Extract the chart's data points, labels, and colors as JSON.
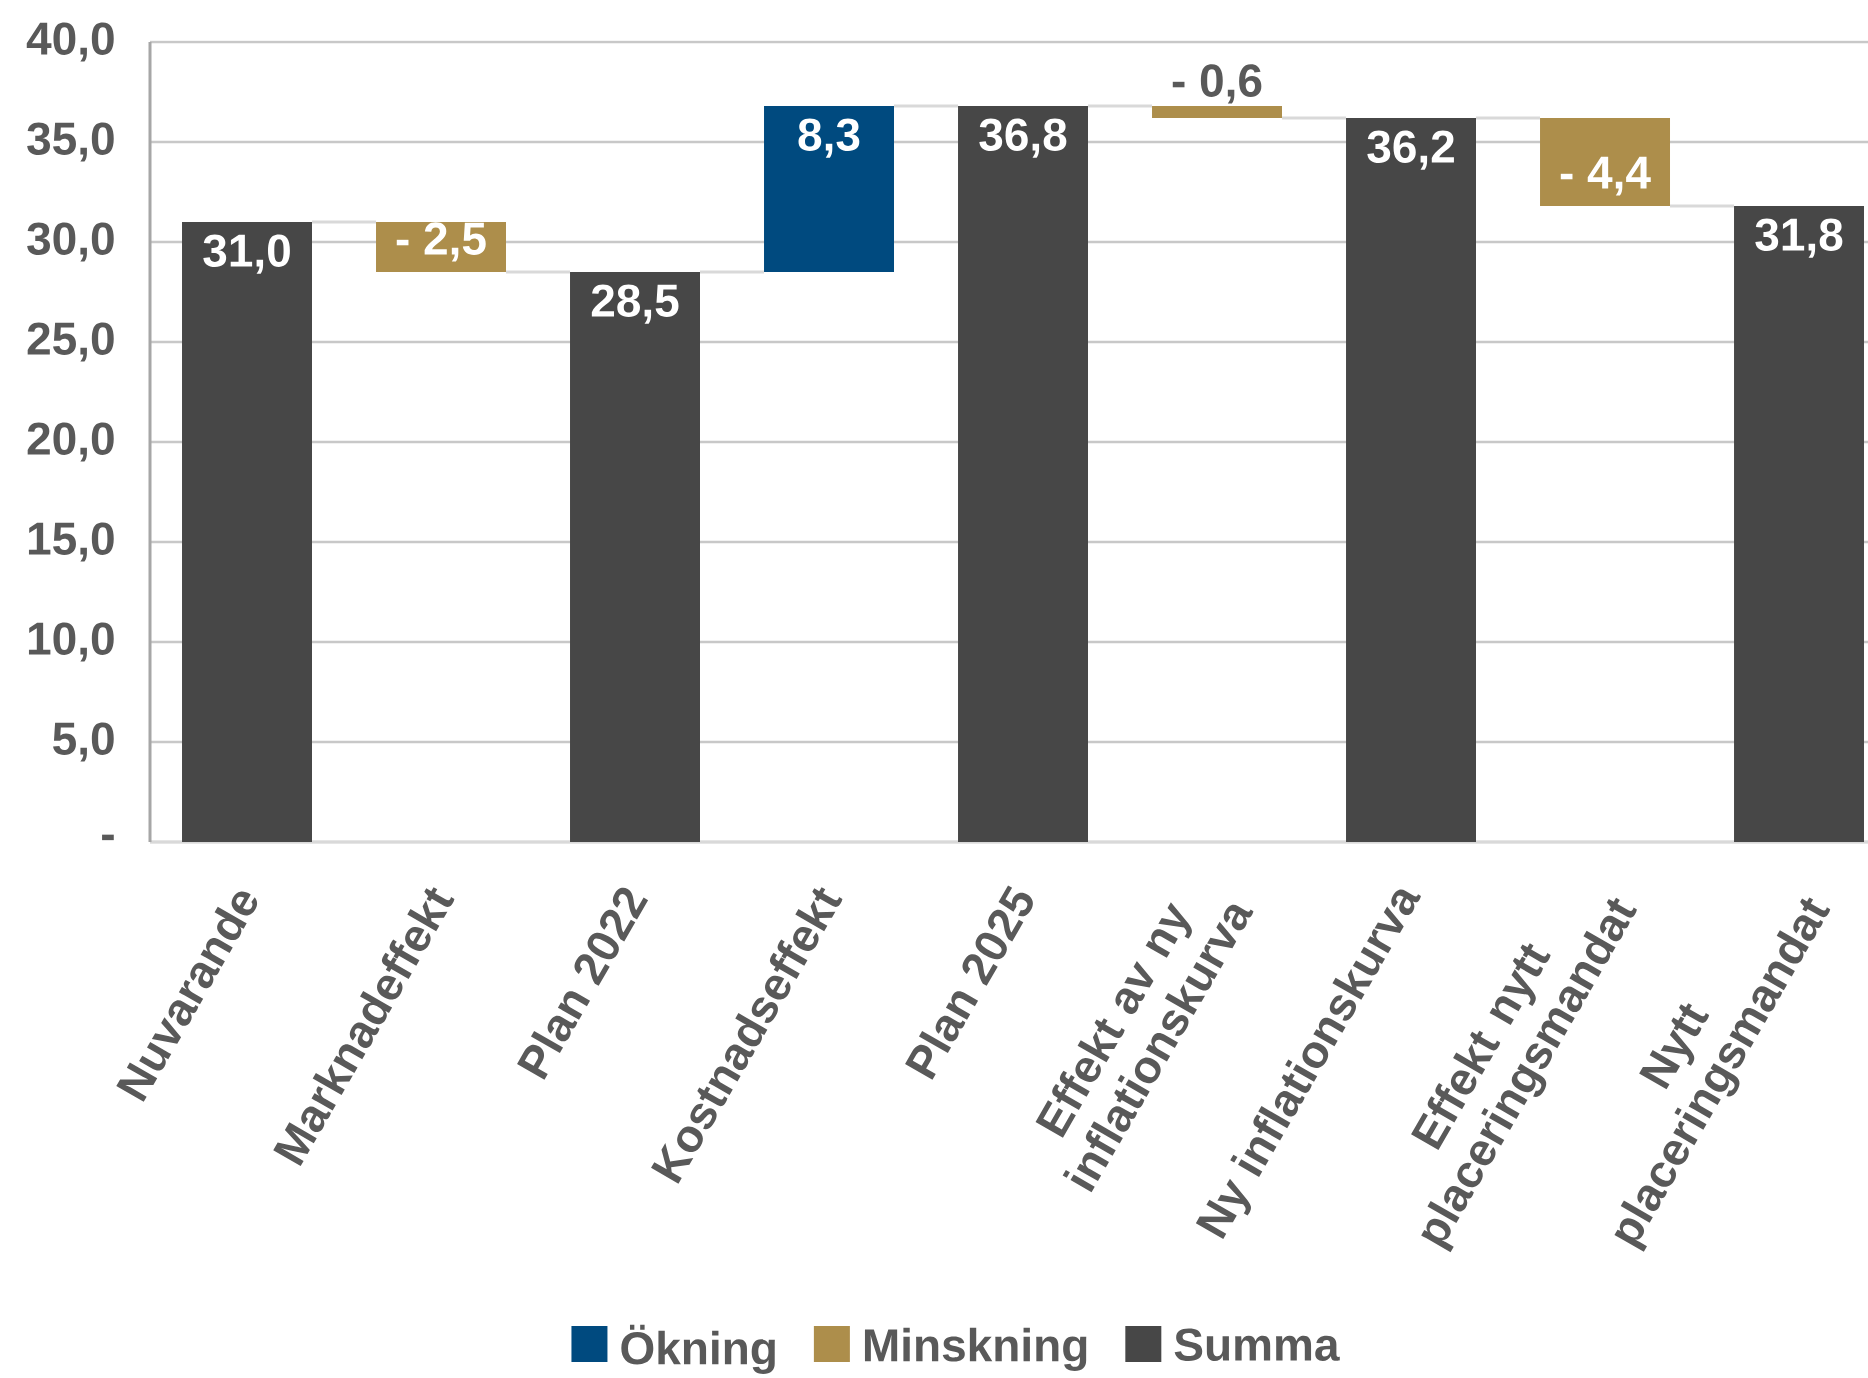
{
  "chart_data": {
    "type": "bar",
    "categories": [
      "Nuvarande",
      "Marknadeffekt",
      "Plan 2022",
      "Kostnadseffekt",
      "Plan 2025",
      "Effekt av ny inflationskurva",
      "Ny inflationskurva",
      "Effekt nytt placeringsmandat",
      "Nytt placeringsmandat"
    ],
    "series": [
      {
        "name": "Ökning",
        "color": "#004A7F",
        "values": [
          null,
          null,
          null,
          8.3,
          null,
          null,
          null,
          null,
          null
        ],
        "base": [
          null,
          null,
          null,
          28.5,
          null,
          null,
          null,
          null,
          null
        ],
        "value_labels": [
          null,
          null,
          null,
          "8,3",
          null,
          null,
          null,
          null,
          null
        ]
      },
      {
        "name": "Minskning",
        "color": "#AD8E4B",
        "values": [
          null,
          -2.5,
          null,
          null,
          null,
          -0.6,
          null,
          -4.4,
          null
        ],
        "base": [
          null,
          31.0,
          null,
          null,
          null,
          36.8,
          null,
          36.2,
          null
        ],
        "value_labels": [
          null,
          "- 2,5",
          null,
          null,
          null,
          "- 0,6",
          null,
          "- 4,4",
          null
        ]
      },
      {
        "name": "Summa",
        "color": "#474747",
        "values": [
          31.0,
          null,
          28.5,
          null,
          36.8,
          null,
          36.2,
          null,
          31.8
        ],
        "value_labels": [
          "31,0",
          null,
          "28,5",
          null,
          "36,8",
          null,
          "36,2",
          null,
          "31,8"
        ]
      }
    ],
    "ylim": [
      0,
      40
    ],
    "yticks": [
      {
        "value": 0,
        "label": "-"
      },
      {
        "value": 5,
        "label": "5,0"
      },
      {
        "value": 10,
        "label": "10,0"
      },
      {
        "value": 15,
        "label": "15,0"
      },
      {
        "value": 20,
        "label": "20,0"
      },
      {
        "value": 25,
        "label": "25,0"
      },
      {
        "value": 30,
        "label": "30,0"
      },
      {
        "value": 35,
        "label": "35,0"
      },
      {
        "value": 40,
        "label": "40,0"
      }
    ],
    "grid": "y",
    "legend": "bottom"
  }
}
